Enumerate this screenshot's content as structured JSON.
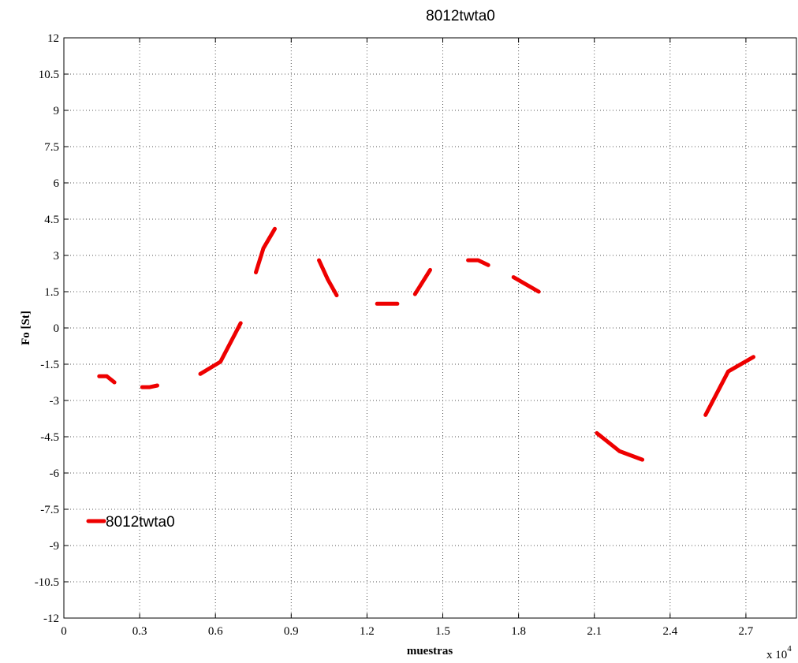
{
  "chart_data": {
    "type": "line",
    "title": "8012twta0",
    "xlabel": "muestras",
    "ylabel": "Fo [St]",
    "x_multiplier_label": "x 10",
    "x_multiplier_exponent": "4",
    "xlim": [
      0,
      2.9
    ],
    "ylim": [
      -12,
      12
    ],
    "xticks": [
      0,
      0.3,
      0.6,
      0.9,
      1.2,
      1.5,
      1.8,
      2.1,
      2.4,
      2.7
    ],
    "xtick_labels": [
      "0",
      "0.3",
      "0.6",
      "0.9",
      "1.2",
      "1.5",
      "1.8",
      "2.1",
      "2.4",
      "2.7"
    ],
    "yticks": [
      12,
      10.5,
      9,
      7.5,
      6,
      4.5,
      3,
      1.5,
      0,
      -1.5,
      -3,
      -4.5,
      -6,
      -7.5,
      -9,
      -10.5,
      -12
    ],
    "ytick_labels": [
      "12",
      "10.5",
      "9",
      "7.5",
      "6",
      "4.5",
      "3",
      "1.5",
      "0",
      "-1.5",
      "-3",
      "-4.5",
      "-6",
      "-7.5",
      "-9",
      "-10.5",
      "-12"
    ],
    "grid": true,
    "legend_position": "bottom-left",
    "series": [
      {
        "name": "8012twta0",
        "color": "#ee0000",
        "segments": [
          [
            [
              0.14,
              -2.0
            ],
            [
              0.17,
              -2.0
            ],
            [
              0.2,
              -2.25
            ]
          ],
          [
            [
              0.31,
              -2.45
            ],
            [
              0.34,
              -2.45
            ],
            [
              0.37,
              -2.38
            ]
          ],
          [
            [
              0.54,
              -1.9
            ],
            [
              0.62,
              -1.4
            ],
            [
              0.7,
              0.2
            ]
          ],
          [
            [
              0.76,
              2.3
            ],
            [
              0.79,
              3.3
            ],
            [
              0.835,
              4.1
            ]
          ],
          [
            [
              1.01,
              2.8
            ],
            [
              1.045,
              2.0
            ],
            [
              1.08,
              1.35
            ]
          ],
          [
            [
              1.24,
              1.0
            ],
            [
              1.32,
              1.0
            ]
          ],
          [
            [
              1.39,
              1.4
            ],
            [
              1.45,
              2.4
            ]
          ],
          [
            [
              1.6,
              2.8
            ],
            [
              1.64,
              2.8
            ],
            [
              1.68,
              2.6
            ]
          ],
          [
            [
              1.78,
              2.1
            ],
            [
              1.83,
              1.8
            ],
            [
              1.88,
              1.5
            ]
          ],
          [
            [
              2.11,
              -4.35
            ],
            [
              2.2,
              -5.1
            ],
            [
              2.29,
              -5.45
            ]
          ],
          [
            [
              2.54,
              -3.6
            ],
            [
              2.63,
              -1.8
            ],
            [
              2.73,
              -1.2
            ]
          ]
        ]
      }
    ]
  }
}
